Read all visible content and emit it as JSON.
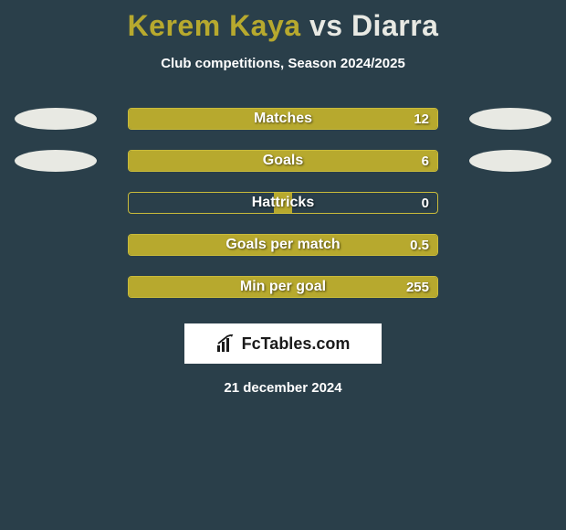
{
  "title": {
    "player_a": "Kerem Kaya",
    "vs": "vs",
    "player_b": "Diarra",
    "color_a": "#b7a92e",
    "color_b": "#e8e9e3"
  },
  "subtitle": "Club competitions, Season 2024/2025",
  "colors": {
    "background": "#2a3f4a",
    "bar_fill": "#b7a92e",
    "bar_border": "#c9bb3a",
    "ellipse_left": "#e8e9e3",
    "ellipse_right": "#e8e9e3",
    "text": "#ffffff"
  },
  "bars": [
    {
      "label": "Matches",
      "value": "12",
      "fill_left_pct": 0,
      "fill_width_pct": 100,
      "show_ellipse": true
    },
    {
      "label": "Goals",
      "value": "6",
      "fill_left_pct": 0,
      "fill_width_pct": 100,
      "show_ellipse": true
    },
    {
      "label": "Hattricks",
      "value": "0",
      "fill_left_pct": 47,
      "fill_width_pct": 6,
      "show_ellipse": false
    },
    {
      "label": "Goals per match",
      "value": "0.5",
      "fill_left_pct": 0,
      "fill_width_pct": 100,
      "show_ellipse": false
    },
    {
      "label": "Min per goal",
      "value": "255",
      "fill_left_pct": 0,
      "fill_width_pct": 100,
      "show_ellipse": false
    }
  ],
  "logo": {
    "icon_name": "chart-icon",
    "text": "FcTables.com"
  },
  "date": "21 december 2024"
}
